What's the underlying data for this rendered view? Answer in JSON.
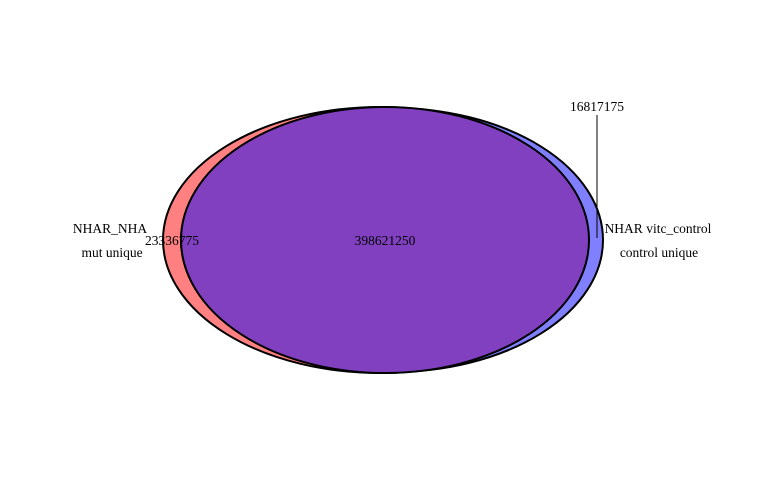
{
  "venn": {
    "set_a": {
      "label_line1": "NHAR_NHA",
      "label_line2": "mut unique",
      "unique_count": "23336775",
      "color": "#ff8080"
    },
    "set_b": {
      "label_line1": "NHAR vitc_control",
      "label_line2": "control unique",
      "unique_count": "16817175",
      "color": "#8080ff"
    },
    "overlap": {
      "count": "398621250",
      "color": "#8040c0"
    },
    "outline_color": "#000000"
  }
}
